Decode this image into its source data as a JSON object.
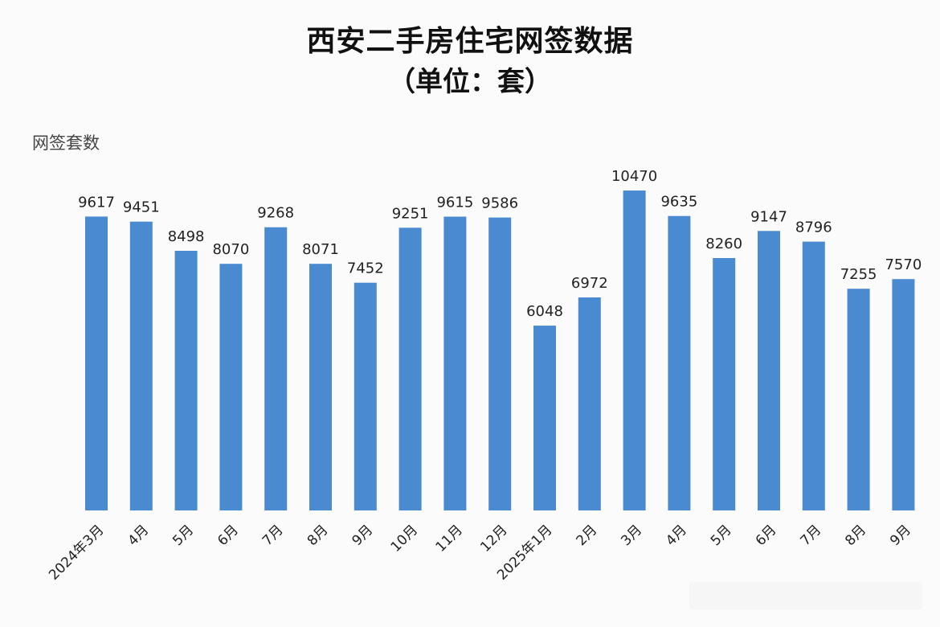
{
  "chart_data": {
    "type": "bar",
    "title": "西安二手房住宅网签数据",
    "subtitle": "（单位：套）",
    "ylabel": "网签套数",
    "xlabel": "",
    "categories": [
      "2024年3月",
      "4月",
      "5月",
      "6月",
      "7月",
      "8月",
      "9月",
      "10月",
      "11月",
      "12月",
      "2025年1月",
      "2月",
      "3月",
      "4月",
      "5月",
      "6月",
      "7月",
      "8月",
      "9月"
    ],
    "values": [
      9617,
      9451,
      8498,
      8070,
      9268,
      8071,
      7452,
      9251,
      9615,
      9586,
      6048,
      6972,
      10470,
      9635,
      8260,
      9147,
      8796,
      7255,
      7570
    ],
    "ylim": [
      0,
      11000
    ],
    "grid": false,
    "bar_color": "#4a8ad0"
  }
}
